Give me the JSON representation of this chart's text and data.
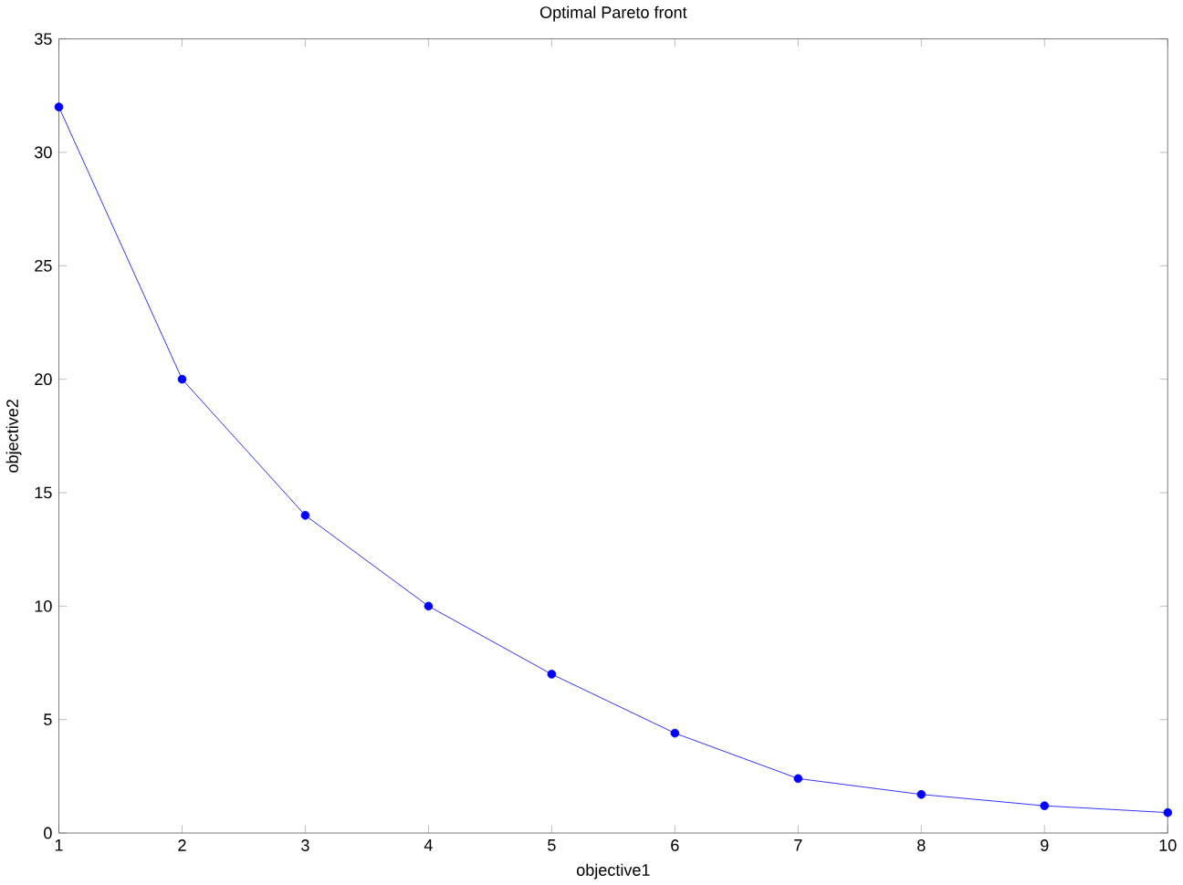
{
  "chart_data": {
    "type": "line",
    "title": "Optimal Pareto front",
    "xlabel": "objective1",
    "ylabel": "objective2",
    "x": [
      1,
      2,
      3,
      4,
      5,
      6,
      7,
      8,
      9,
      10
    ],
    "series": [
      {
        "color": "#0000ff",
        "values": [
          32,
          20,
          14,
          10,
          7,
          4.4,
          2.4,
          1.7,
          1.2,
          0.9
        ]
      }
    ],
    "xlim": [
      1,
      10
    ],
    "xticks": [
      1,
      2,
      3,
      4,
      5,
      6,
      7,
      8,
      9,
      10
    ],
    "ylim": [
      0,
      35
    ],
    "yticks": [
      0,
      5,
      10,
      15,
      20,
      25,
      30,
      35
    ],
    "grid": false,
    "marker": "circle",
    "line_style": "solid"
  }
}
